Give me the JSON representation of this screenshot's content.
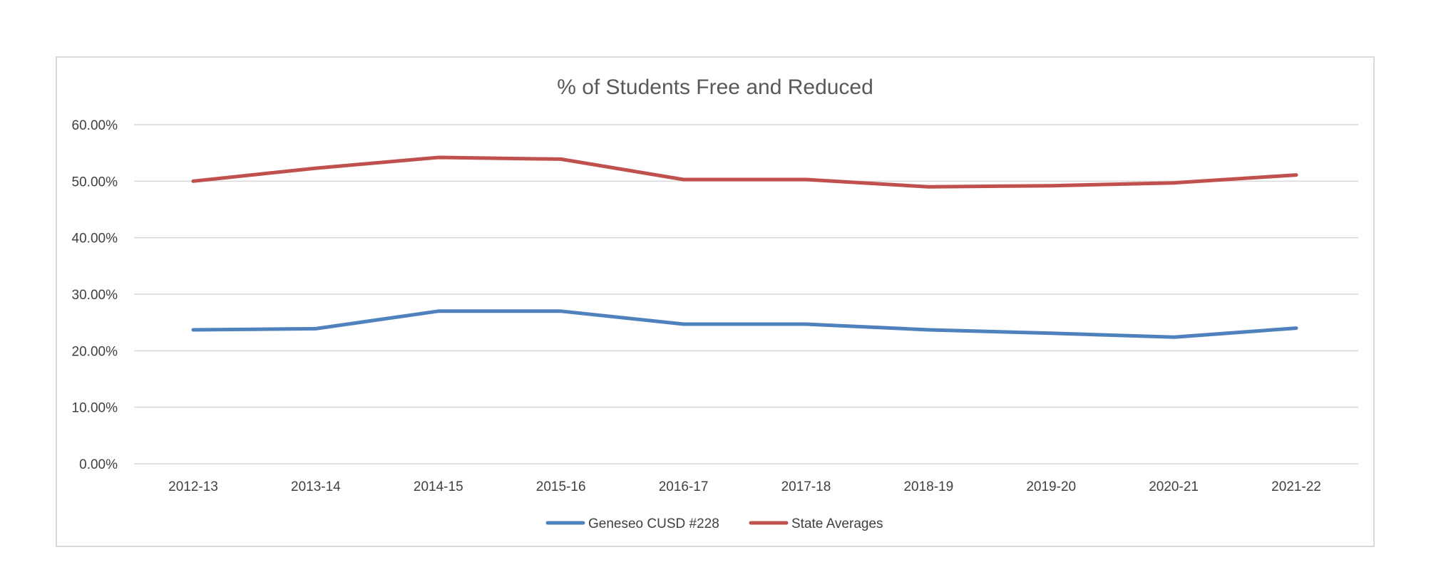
{
  "chart_data": {
    "type": "line",
    "title": "% of Students Free and Reduced",
    "xlabel": "",
    "ylabel": "",
    "categories": [
      "2012-13",
      "2013-14",
      "2014-15",
      "2015-16",
      "2016-17",
      "2017-18",
      "2018-19",
      "2019-20",
      "2020-21",
      "2021-22"
    ],
    "yticks": [
      "0.00%",
      "10.00%",
      "20.00%",
      "30.00%",
      "40.00%",
      "50.00%",
      "60.00%"
    ],
    "ylim": [
      0,
      60
    ],
    "grid": true,
    "legend_position": "bottom",
    "series": [
      {
        "name": "Geneseo CUSD #228",
        "color": "#4f81bd",
        "values": [
          23.7,
          23.9,
          27.0,
          27.0,
          24.7,
          24.7,
          23.7,
          23.1,
          22.4,
          24.0
        ]
      },
      {
        "name": "State Averages",
        "color": "#c0504d",
        "values": [
          50.0,
          52.3,
          54.2,
          53.9,
          50.3,
          50.3,
          49.0,
          49.2,
          49.7,
          51.1
        ]
      }
    ]
  }
}
